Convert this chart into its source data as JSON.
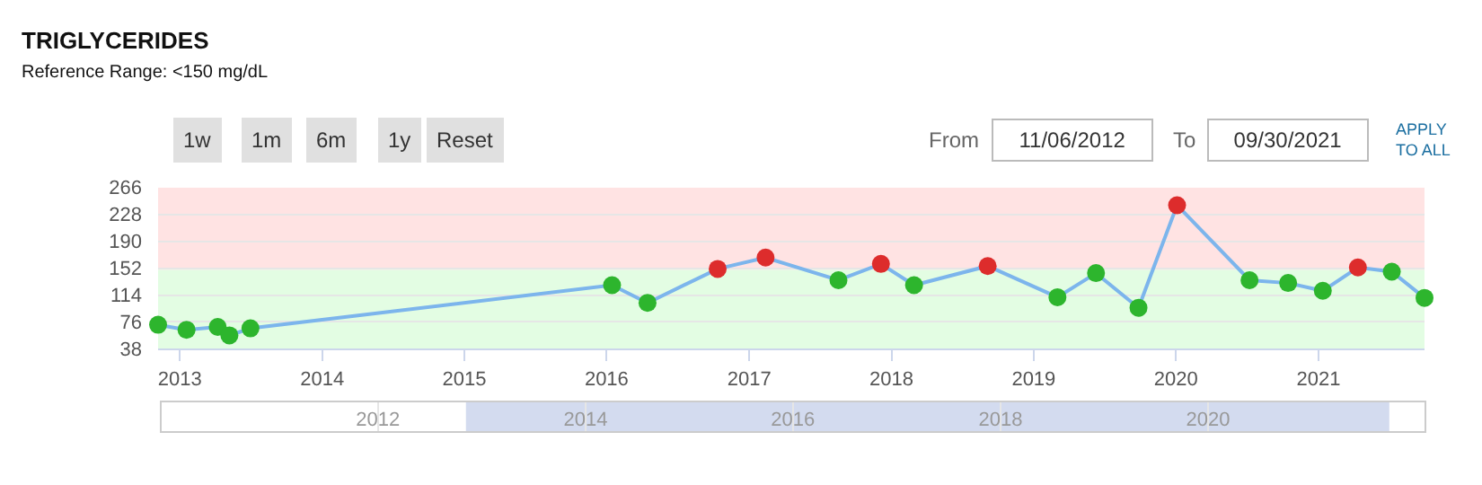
{
  "chart_data": {
    "type": "line",
    "title": "TRIGLYCERIDES",
    "subtitle": "Reference Range: <150 mg/dL",
    "annotations": [
      "1w",
      "1m",
      "6m",
      "1y",
      "Reset",
      "From",
      "11/06/2012",
      "To",
      "09/30/2021",
      "APPLY\nTO ALL"
    ],
    "x": [
      "2012-11-06",
      "2013-01-18",
      "2013-04-08",
      "2013-05-08",
      "2013-07-01",
      "2016-01-15",
      "2016-04-15",
      "2016-10-12",
      "2017-02-12",
      "2017-08-18",
      "2017-12-05",
      "2018-02-28",
      "2018-09-05",
      "2019-03-03",
      "2019-06-10",
      "2019-09-27",
      "2020-01-04",
      "2020-07-08",
      "2020-10-15",
      "2021-01-12",
      "2021-04-12",
      "2021-07-08",
      "2021-09-30"
    ],
    "series": [
      {
        "color": "#7cb5ec",
        "values": [
          72,
          65,
          69,
          57,
          67,
          128,
          103,
          151,
          167,
          135,
          158,
          128,
          155,
          111,
          145,
          96,
          241,
          135,
          131,
          120,
          153,
          147,
          110
        ],
        "colors": [
          "#2db52d",
          "#2db52d",
          "#2db52d",
          "#2db52d",
          "#2db52d",
          "#2db52d",
          "#2db52d",
          "#dd2c2c",
          "#dd2c2c",
          "#2db52d",
          "#dd2c2c",
          "#2db52d",
          "#dd2c2c",
          "#2db52d",
          "#2db52d",
          "#2db52d",
          "#dd2c2c",
          "#2db52d",
          "#2db52d",
          "#2db52d",
          "#dd2c2c",
          "#2db52d",
          "#2db52d"
        ]
      }
    ],
    "xlim": [
      "2012-11-06",
      "2021-09-30"
    ],
    "xticks": [
      "2013",
      "2014",
      "2015",
      "2016",
      "2017",
      "2018",
      "2019",
      "2020",
      "2021"
    ],
    "ylim": [
      38,
      266
    ],
    "yticks": [
      38,
      76,
      114,
      152,
      190,
      228,
      266
    ],
    "x2lim": [
      "2009-12-01",
      "2022-02-01"
    ],
    "x2ticks": [
      "2012",
      "2014",
      "2016",
      "2018",
      "2020"
    ],
    "bands": [
      {
        "axis": "y",
        "from": 38,
        "to": 150,
        "color": "#e3fde3"
      },
      {
        "axis": "y",
        "from": 150,
        "to": 266,
        "color": "#ffe3e3"
      }
    ],
    "grid": "y",
    "marker": "circle",
    "line_style": "solid"
  }
}
